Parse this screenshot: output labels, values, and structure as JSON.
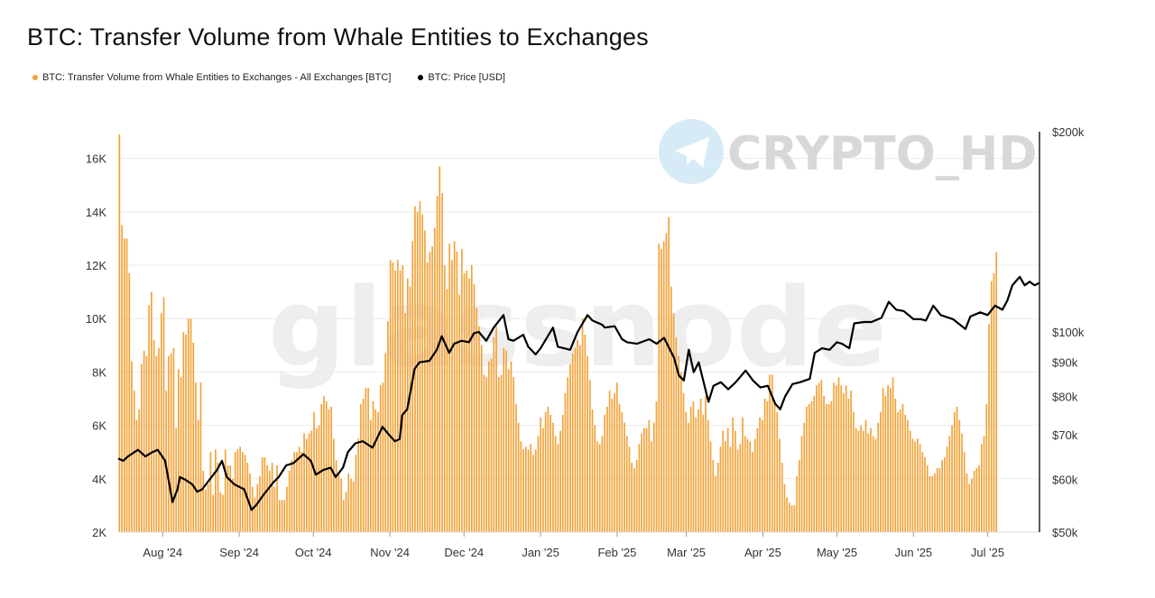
{
  "title": "BTC: Transfer Volume from Whale Entities to Exchanges",
  "legend": [
    {
      "label": "BTC: Transfer Volume from Whale Entities to Exchanges - All Exchanges [BTC]",
      "color": "#f2a33a"
    },
    {
      "label": "BTC: Price [USD]",
      "color": "#000000"
    }
  ],
  "watermark": {
    "brand": "CRYPTO_HD",
    "site": "glassnode",
    "icon": "telegram-plane-icon"
  },
  "chart_data": {
    "type": "bar",
    "grid": true,
    "x_range": [
      "2024-07-14",
      "2025-07-22"
    ],
    "x_ticks": [
      "Aug '24",
      "Sep '24",
      "Oct '24",
      "Nov '24",
      "Dec '24",
      "Jan '25",
      "Feb '25",
      "Mar '25",
      "Apr '25",
      "May '25",
      "Jun '25",
      "Jul '25"
    ],
    "y_left": {
      "ylim": [
        2000,
        17000
      ],
      "ticks": [
        "2K",
        "4K",
        "6K",
        "8K",
        "10K",
        "12K",
        "14K",
        "16K"
      ],
      "tick_values": [
        2000,
        4000,
        6000,
        8000,
        10000,
        12000,
        14000,
        16000
      ]
    },
    "y_right": {
      "scale": "log",
      "ylim": [
        50000,
        200000
      ],
      "ticks": [
        "$50k",
        "$60k",
        "$70k",
        "$80k",
        "$90k",
        "$100k",
        "$200k"
      ],
      "tick_values": [
        50000,
        60000,
        70000,
        80000,
        90000,
        100000,
        200000
      ]
    },
    "series": [
      {
        "name": "BTC: Transfer Volume from Whale Entities to Exchanges - All Exchanges [BTC]",
        "type": "bar",
        "axis": "left",
        "color": "#f2a33a",
        "date_start": "2024-07-14",
        "interval_days": 1,
        "values": [
          16900,
          13500,
          13000,
          13000,
          11700,
          8400,
          7300,
          6200,
          6600,
          8300,
          8800,
          8600,
          10500,
          11000,
          9200,
          8600,
          8900,
          10200,
          10800,
          7300,
          8600,
          8700,
          8900,
          5900,
          8100,
          7800,
          9500,
          9400,
          10000,
          10000,
          9100,
          7600,
          6200,
          7600,
          4300,
          3600,
          3800,
          5000,
          3400,
          5100,
          4600,
          3500,
          3400,
          5100,
          4500,
          4500,
          4000,
          5000,
          5100,
          5200,
          5000,
          4900,
          4600,
          4200,
          3700,
          3300,
          3800,
          4100,
          4800,
          4800,
          4500,
          4300,
          4600,
          3700,
          4500,
          3200,
          3200,
          3200,
          3700,
          4300,
          4700,
          5000,
          5000,
          5200,
          5000,
          5700,
          5500,
          5700,
          5800,
          6500,
          5900,
          6000,
          6800,
          7100,
          6900,
          6600,
          6700,
          5500,
          4700,
          4200,
          4000,
          3200,
          3500,
          4200,
          4000,
          3900,
          4900,
          5500,
          6800,
          7000,
          7400,
          7400,
          6200,
          6900,
          6600,
          6500,
          7500,
          7600,
          8700,
          9900,
          12200,
          12100,
          11800,
          12200,
          11800,
          12000,
          10200,
          11500,
          11200,
          12900,
          14200,
          14000,
          14400,
          13900,
          13300,
          12100,
          12500,
          12700,
          13400,
          14600,
          15700,
          14700,
          12000,
          11100,
          12800,
          12200,
          12900,
          12500,
          10900,
          12600,
          11700,
          11800,
          11500,
          12000,
          11300,
          10400,
          9700,
          9000,
          7900,
          7800,
          8400,
          8500,
          9300,
          9700,
          7800,
          7900,
          8900,
          8800,
          8100,
          8400,
          7800,
          6800,
          6100,
          5400,
          5100,
          5200,
          5100,
          5300,
          4900,
          5100,
          5600,
          6300,
          5900,
          6500,
          6700,
          6400,
          6100,
          5600,
          5300,
          5800,
          6400,
          7200,
          7800,
          8300,
          8700,
          8900,
          9200,
          9000,
          10000,
          9400,
          8600,
          7700,
          6600,
          6000,
          5400,
          5300,
          5600,
          6400,
          6700,
          7300,
          7000,
          7200,
          7600,
          6800,
          6500,
          6100,
          5600,
          5200,
          4600,
          4400,
          4700,
          5300,
          5700,
          5900,
          5900,
          6200,
          5400,
          6100,
          6900,
          12800,
          12600,
          12900,
          13200,
          13800,
          11200,
          10200,
          9300,
          8600,
          8000,
          7200,
          6500,
          6100,
          6700,
          6900,
          6300,
          6600,
          7000,
          6400,
          7100,
          6200,
          5400,
          4700,
          4100,
          4600,
          5200,
          5800,
          5400,
          5900,
          5200,
          6300,
          5800,
          5100,
          5300,
          6300,
          5600,
          5500,
          5400,
          5000,
          5500,
          5900,
          6300,
          6200,
          7000,
          6900,
          7900,
          7900,
          6900,
          6500,
          5500,
          4600,
          3800,
          3300,
          3100,
          3000,
          3000,
          4100,
          4700,
          5600,
          6100,
          6700,
          6800,
          6900,
          7100,
          7500,
          7600,
          7700,
          7100,
          6800,
          6800,
          6900,
          7600,
          7500,
          7800,
          7500,
          7200,
          7500,
          7000,
          7300,
          6500,
          5900,
          5800,
          6000,
          5800,
          6200,
          5700,
          5900,
          5600,
          5500,
          6100,
          6500,
          7400,
          7100,
          7500,
          7400,
          7800,
          7000,
          6500,
          6600,
          6800,
          6400,
          6200,
          5800,
          5500,
          5400,
          5500,
          5300,
          5000,
          4800,
          4500,
          4100,
          4100,
          4200,
          4400,
          4400,
          4700,
          4800,
          5200,
          5600,
          6000,
          6500,
          6700,
          6200,
          5700,
          5000,
          4200,
          3800,
          4000,
          4300,
          4400,
          4500,
          5300,
          5600,
          6800,
          9800,
          11400,
          11700,
          12500
        ],
        "x_range_dates": [
          "2024-07-14",
          "2025-07-22"
        ]
      },
      {
        "name": "BTC: Price [USD]",
        "type": "line",
        "axis": "right",
        "color": "#000000",
        "points": [
          [
            "2024-07-14",
            64500
          ],
          [
            "2024-07-16",
            64000
          ],
          [
            "2024-07-18",
            65000
          ],
          [
            "2024-07-22",
            66500
          ],
          [
            "2024-07-25",
            65000
          ],
          [
            "2024-07-28",
            66000
          ],
          [
            "2024-07-30",
            66500
          ],
          [
            "2024-08-02",
            64000
          ],
          [
            "2024-08-05",
            55500
          ],
          [
            "2024-08-07",
            58000
          ],
          [
            "2024-08-08",
            60500
          ],
          [
            "2024-08-10",
            60000
          ],
          [
            "2024-08-13",
            59000
          ],
          [
            "2024-08-15",
            57500
          ],
          [
            "2024-08-17",
            58000
          ],
          [
            "2024-08-20",
            60000
          ],
          [
            "2024-08-23",
            62000
          ],
          [
            "2024-08-25",
            64000
          ],
          [
            "2024-08-27",
            60500
          ],
          [
            "2024-08-30",
            59000
          ],
          [
            "2024-09-03",
            58000
          ],
          [
            "2024-09-06",
            54000
          ],
          [
            "2024-09-08",
            55000
          ],
          [
            "2024-09-11",
            57000
          ],
          [
            "2024-09-15",
            59500
          ],
          [
            "2024-09-17",
            60500
          ],
          [
            "2024-09-20",
            63000
          ],
          [
            "2024-09-23",
            63500
          ],
          [
            "2024-09-27",
            65500
          ],
          [
            "2024-09-30",
            64000
          ],
          [
            "2024-10-02",
            61000
          ],
          [
            "2024-10-05",
            62000
          ],
          [
            "2024-10-08",
            62500
          ],
          [
            "2024-10-10",
            60500
          ],
          [
            "2024-10-13",
            62500
          ],
          [
            "2024-10-15",
            66000
          ],
          [
            "2024-10-18",
            68000
          ],
          [
            "2024-10-21",
            68500
          ],
          [
            "2024-10-25",
            67000
          ],
          [
            "2024-10-29",
            72000
          ],
          [
            "2024-10-31",
            70500
          ],
          [
            "2024-11-03",
            68500
          ],
          [
            "2024-11-05",
            69000
          ],
          [
            "2024-11-06",
            75000
          ],
          [
            "2024-11-08",
            76500
          ],
          [
            "2024-11-11",
            88000
          ],
          [
            "2024-11-13",
            90000
          ],
          [
            "2024-11-17",
            90500
          ],
          [
            "2024-11-20",
            94000
          ],
          [
            "2024-11-22",
            98500
          ],
          [
            "2024-11-25",
            93000
          ],
          [
            "2024-11-27",
            96000
          ],
          [
            "2024-11-30",
            97000
          ],
          [
            "2024-12-03",
            96500
          ],
          [
            "2024-12-05",
            99500
          ],
          [
            "2024-12-07",
            100000
          ],
          [
            "2024-12-10",
            97000
          ],
          [
            "2024-12-13",
            101500
          ],
          [
            "2024-12-17",
            106000
          ],
          [
            "2024-12-19",
            97500
          ],
          [
            "2024-12-21",
            97000
          ],
          [
            "2024-12-25",
            99000
          ],
          [
            "2024-12-27",
            95000
          ],
          [
            "2024-12-30",
            92500
          ],
          [
            "2025-01-01",
            94500
          ],
          [
            "2025-01-06",
            101500
          ],
          [
            "2025-01-08",
            95000
          ],
          [
            "2025-01-13",
            94000
          ],
          [
            "2025-01-16",
            100000
          ],
          [
            "2025-01-20",
            106000
          ],
          [
            "2025-01-22",
            104000
          ],
          [
            "2025-01-26",
            102500
          ],
          [
            "2025-01-27",
            101500
          ],
          [
            "2025-01-31",
            102000
          ],
          [
            "2025-02-03",
            97500
          ],
          [
            "2025-02-05",
            96500
          ],
          [
            "2025-02-09",
            96000
          ],
          [
            "2025-02-14",
            97500
          ],
          [
            "2025-02-17",
            96000
          ],
          [
            "2025-02-20",
            98000
          ],
          [
            "2025-02-24",
            91500
          ],
          [
            "2025-02-26",
            86000
          ],
          [
            "2025-02-28",
            84500
          ],
          [
            "2025-03-02",
            94000
          ],
          [
            "2025-03-04",
            87000
          ],
          [
            "2025-03-06",
            90000
          ],
          [
            "2025-03-10",
            78500
          ],
          [
            "2025-03-12",
            83000
          ],
          [
            "2025-03-15",
            84000
          ],
          [
            "2025-03-18",
            82000
          ],
          [
            "2025-03-21",
            84000
          ],
          [
            "2025-03-25",
            87500
          ],
          [
            "2025-03-28",
            84500
          ],
          [
            "2025-03-31",
            82500
          ],
          [
            "2025-04-03",
            83000
          ],
          [
            "2025-04-06",
            78000
          ],
          [
            "2025-04-08",
            76500
          ],
          [
            "2025-04-10",
            80000
          ],
          [
            "2025-04-13",
            83500
          ],
          [
            "2025-04-16",
            84000
          ],
          [
            "2025-04-20",
            85000
          ],
          [
            "2025-04-22",
            93000
          ],
          [
            "2025-04-25",
            94500
          ],
          [
            "2025-04-28",
            94000
          ],
          [
            "2025-05-01",
            96500
          ],
          [
            "2025-05-03",
            96000
          ],
          [
            "2025-05-06",
            94500
          ],
          [
            "2025-05-08",
            103000
          ],
          [
            "2025-05-12",
            103500
          ],
          [
            "2025-05-15",
            103500
          ],
          [
            "2025-05-19",
            105000
          ],
          [
            "2025-05-22",
            111000
          ],
          [
            "2025-05-25",
            108000
          ],
          [
            "2025-05-28",
            107500
          ],
          [
            "2025-06-01",
            104500
          ],
          [
            "2025-06-04",
            104500
          ],
          [
            "2025-06-06",
            104000
          ],
          [
            "2025-06-09",
            109500
          ],
          [
            "2025-06-12",
            106000
          ],
          [
            "2025-06-17",
            104500
          ],
          [
            "2025-06-22",
            101000
          ],
          [
            "2025-06-24",
            105500
          ],
          [
            "2025-06-28",
            107000
          ],
          [
            "2025-07-01",
            106000
          ],
          [
            "2025-07-04",
            109500
          ],
          [
            "2025-07-07",
            108000
          ],
          [
            "2025-07-09",
            111500
          ],
          [
            "2025-07-11",
            117500
          ],
          [
            "2025-07-14",
            121000
          ],
          [
            "2025-07-16",
            117500
          ],
          [
            "2025-07-18",
            119000
          ],
          [
            "2025-07-20",
            117500
          ],
          [
            "2025-07-22",
            118500
          ]
        ]
      }
    ]
  }
}
